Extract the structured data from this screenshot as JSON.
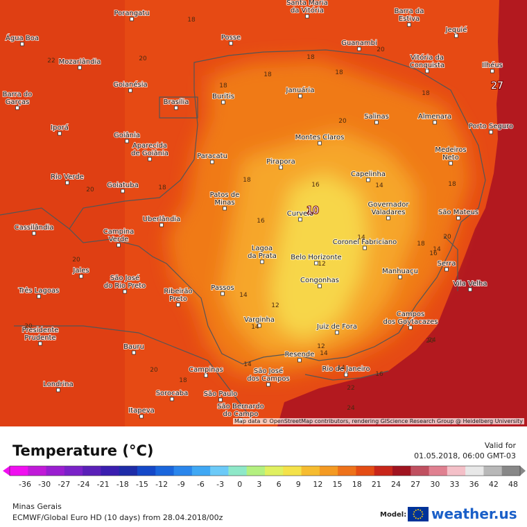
{
  "colors": {
    "ocean": "#b3191f",
    "land_warm": "#e64a14",
    "land_hot": "#d8300f",
    "minas_mid": "#f07a18",
    "minas_cool": "#f6a62a",
    "minas_coolest": "#f7d64a",
    "border": "#555555",
    "isoline": "#c8c8c8"
  },
  "cities": [
    {
      "name": "Porangatu"
    },
    {
      "name": "Santa Maria\nda Vitória"
    },
    {
      "name": "Barra da\nEstiva"
    },
    {
      "name": "Água Boa"
    },
    {
      "name": "Posse"
    },
    {
      "name": "Jequié"
    },
    {
      "name": "Mozarlândia"
    },
    {
      "name": "Guanambi"
    },
    {
      "name": "Vitória da\nConquista"
    },
    {
      "name": "Ilhéus"
    },
    {
      "name": "Barra do\nGarças"
    },
    {
      "name": "Goianésia"
    },
    {
      "name": "Brasília"
    },
    {
      "name": "Buritis"
    },
    {
      "name": "Januária"
    },
    {
      "name": "Salinas"
    },
    {
      "name": "Almenara"
    },
    {
      "name": "Iporá"
    },
    {
      "name": "Porto Seguro"
    },
    {
      "name": "Goiânia"
    },
    {
      "name": "Montes Claros"
    },
    {
      "name": "Aparecida\nde Goiânia"
    },
    {
      "name": "Paracatu"
    },
    {
      "name": "Medeiros\nNeto"
    },
    {
      "name": "Pirapora"
    },
    {
      "name": "Capelinha"
    },
    {
      "name": "Rio Verde"
    },
    {
      "name": "Goiatuba"
    },
    {
      "name": "Patos de\nMinas"
    },
    {
      "name": "Curvelo"
    },
    {
      "name": "Governador\nValadares"
    },
    {
      "name": "São Mateus"
    },
    {
      "name": "Uberlândia"
    },
    {
      "name": "Cassilândia"
    },
    {
      "name": "Campina\nVerde"
    },
    {
      "name": "Coronel Fabriciano"
    },
    {
      "name": "Lagoa\nda Prata"
    },
    {
      "name": "Belo Horizonte"
    },
    {
      "name": "Serra"
    },
    {
      "name": "Jales"
    },
    {
      "name": "Manhuaçu"
    },
    {
      "name": "Vila Velha"
    },
    {
      "name": "Congonhas"
    },
    {
      "name": "Passos"
    },
    {
      "name": "São José\ndo Rio Preto"
    },
    {
      "name": "Três Lagoas"
    },
    {
      "name": "Ribeirão\nPreto"
    },
    {
      "name": "Campos\ndos Goytacazes"
    },
    {
      "name": "Varginha"
    },
    {
      "name": "Juiz de Fora"
    },
    {
      "name": "Presidente\nPrudente"
    },
    {
      "name": "Bauru"
    },
    {
      "name": "Resende"
    },
    {
      "name": "Rio de Janeiro"
    },
    {
      "name": "Campinas"
    },
    {
      "name": "São José\ndos Campos"
    },
    {
      "name": "Londrina"
    },
    {
      "name": "Sorocaba"
    },
    {
      "name": "São Paulo"
    },
    {
      "name": "Itapeva"
    },
    {
      "name": "São Bernardo\ndo Campo"
    }
  ],
  "isolines": [
    {
      "label": "18"
    },
    {
      "label": "20"
    },
    {
      "label": "18"
    },
    {
      "label": "22"
    },
    {
      "label": "18"
    },
    {
      "label": "18"
    },
    {
      "label": "20"
    },
    {
      "label": "18"
    },
    {
      "label": "18"
    },
    {
      "label": "20"
    },
    {
      "label": "18"
    },
    {
      "label": "16"
    },
    {
      "label": "14"
    },
    {
      "label": "18"
    },
    {
      "label": "18"
    },
    {
      "label": "20"
    },
    {
      "label": "16"
    },
    {
      "label": "14"
    },
    {
      "label": "12"
    },
    {
      "label": "14"
    },
    {
      "label": "16"
    },
    {
      "label": "18"
    },
    {
      "label": "14"
    },
    {
      "label": "12"
    },
    {
      "label": "14"
    },
    {
      "label": "14"
    },
    {
      "label": "20"
    },
    {
      "label": "20"
    },
    {
      "label": "24"
    },
    {
      "label": "12"
    },
    {
      "label": "14"
    },
    {
      "label": "14"
    },
    {
      "label": "16"
    },
    {
      "label": "18"
    },
    {
      "label": "22"
    },
    {
      "label": "24"
    },
    {
      "label": "20"
    },
    {
      "label": "20"
    },
    {
      "label": "20"
    }
  ],
  "extremes": [
    {
      "label": "27"
    },
    {
      "label": "10"
    }
  ],
  "attribution": "Map data © OpenStreetMap contributors, rendering GIScience Research Group @ Heidelberg University",
  "legend": {
    "title": "Temperature (°C)",
    "valid_label": "Valid for",
    "valid_date": "01.05.2018, 06:00 GMT-03",
    "scale_ticks": [
      "-36",
      "-30",
      "-27",
      "-24",
      "-21",
      "-18",
      "-15",
      "-12",
      "-9",
      "-6",
      "-3",
      "0",
      "3",
      "6",
      "9",
      "12",
      "15",
      "18",
      "21",
      "24",
      "27",
      "30",
      "33",
      "36",
      "42",
      "48"
    ],
    "scale_colors": [
      "#f00ff0",
      "#c01ad8",
      "#9a1ed0",
      "#7a22c8",
      "#5a20b8",
      "#3a1eb0",
      "#1e2ca8",
      "#1448c8",
      "#1a66dc",
      "#2a86ec",
      "#40a8f4",
      "#6ccaf8",
      "#8ee8c8",
      "#b4f080",
      "#e0f060",
      "#f4e24a",
      "#f6bc30",
      "#f49a22",
      "#ee721a",
      "#e44c14",
      "#c8261a",
      "#a01420",
      "#c05060",
      "#e08090",
      "#f4c0c8",
      "#e8e8e8",
      "#b8b8b8",
      "#888888"
    ]
  },
  "footer": {
    "region": "Minas Gerais",
    "model_run": "ECMWF/Global Euro HD (10 days) from 28.04.2018/00z",
    "model_label": "Model:",
    "brand": "weather.us"
  }
}
